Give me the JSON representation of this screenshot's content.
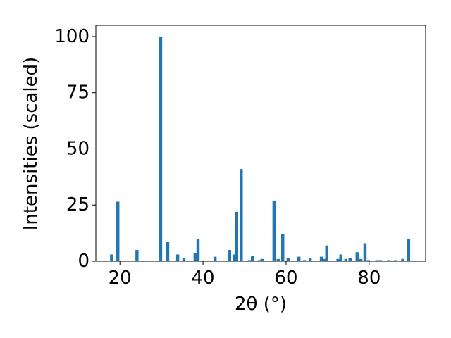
{
  "chart_data": {
    "type": "bar",
    "x_label": "2θ (°)",
    "y_label": "Intensities (scaled)",
    "color": "#1f77b4",
    "x": [
      18.0,
      19.5,
      24.1,
      29.8,
      31.5,
      33.9,
      35.4,
      38.1,
      38.8,
      42.9,
      46.4,
      47.6,
      48.1,
      49.2,
      51.2,
      51.9,
      53.6,
      54.2,
      57.1,
      58.1,
      59.2,
      60.5,
      63.1,
      64.4,
      65.8,
      68.5,
      69.2,
      69.8,
      72.5,
      73.2,
      74.4,
      75.4,
      77.1,
      78.0,
      79.0,
      79.8,
      81.9,
      82.7,
      84.7,
      86.3,
      88.1,
      89.5
    ],
    "values": [
      3,
      26.5,
      5,
      100,
      8.5,
      3,
      1.5,
      3.5,
      10,
      2,
      5,
      3,
      22,
      41,
      0.5,
      2.5,
      0.5,
      1,
      27,
      1,
      12,
      1.5,
      2,
      0.5,
      1.5,
      2,
      1,
      7,
      1,
      3,
      1,
      1.5,
      4,
      1,
      8,
      0.5,
      0.5,
      0.5,
      0.5,
      0.5,
      1,
      10
    ],
    "xlim": [
      14.2,
      93.6
    ],
    "ylim": [
      0,
      105
    ],
    "xticks": [
      20,
      40,
      60,
      80
    ],
    "yticks": [
      0,
      25,
      50,
      75,
      100
    ]
  }
}
